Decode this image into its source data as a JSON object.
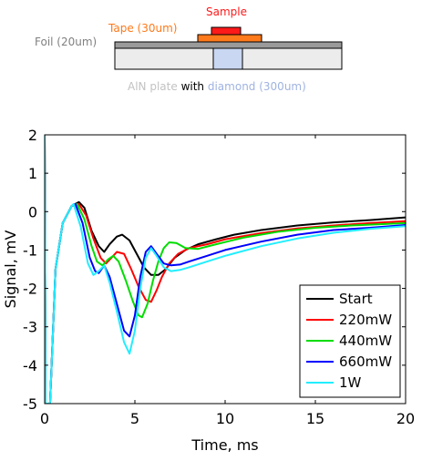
{
  "schematic": {
    "sample_label": "Sample",
    "tape_label": "Tape (30um)",
    "foil_label": "Foil (20um)",
    "aln_label": "AlN plate",
    "with_word": "with",
    "diamond_label": "diamond (300um)",
    "colors": {
      "sample": "#ff1a1a",
      "tape": "#ff7a1a",
      "foil": "#808080",
      "aln": "#c2c2c2",
      "diamond": "#9fb3e0"
    }
  },
  "chart_data": {
    "type": "line",
    "title": "",
    "xlabel": "Time, ms",
    "ylabel": "Signal, mV",
    "xlim": [
      0,
      20
    ],
    "ylim": [
      -5,
      2
    ],
    "xticks": [
      0,
      5,
      10,
      15,
      20
    ],
    "yticks": [
      -5,
      -4,
      -3,
      -2,
      -1,
      0,
      1,
      2
    ],
    "grid": false,
    "legend_position": "lower-right",
    "series": [
      {
        "name": "Start",
        "color": "#000000",
        "points": [
          [
            0,
            2.0
          ],
          [
            0.05,
            -5.0
          ],
          [
            0.3,
            -5.0
          ],
          [
            0.6,
            -1.5
          ],
          [
            1.0,
            -0.3
          ],
          [
            1.5,
            0.15
          ],
          [
            1.9,
            0.25
          ],
          [
            2.2,
            0.1
          ],
          [
            2.6,
            -0.5
          ],
          [
            3.0,
            -0.9
          ],
          [
            3.3,
            -1.05
          ],
          [
            3.6,
            -0.85
          ],
          [
            4.0,
            -0.65
          ],
          [
            4.3,
            -0.6
          ],
          [
            4.7,
            -0.75
          ],
          [
            5.1,
            -1.1
          ],
          [
            5.5,
            -1.45
          ],
          [
            5.9,
            -1.65
          ],
          [
            6.3,
            -1.65
          ],
          [
            6.7,
            -1.5
          ],
          [
            7.2,
            -1.2
          ],
          [
            7.8,
            -1.0
          ],
          [
            8.5,
            -0.85
          ],
          [
            9.5,
            -0.72
          ],
          [
            10.5,
            -0.6
          ],
          [
            12,
            -0.48
          ],
          [
            14,
            -0.36
          ],
          [
            16,
            -0.28
          ],
          [
            18,
            -0.22
          ],
          [
            20,
            -0.15
          ]
        ]
      },
      {
        "name": "220mW",
        "color": "#ff0000",
        "points": [
          [
            0,
            2.0
          ],
          [
            0.05,
            -5.0
          ],
          [
            0.3,
            -5.0
          ],
          [
            0.6,
            -1.5
          ],
          [
            1.0,
            -0.3
          ],
          [
            1.5,
            0.15
          ],
          [
            1.9,
            0.2
          ],
          [
            2.3,
            -0.1
          ],
          [
            2.7,
            -0.7
          ],
          [
            3.1,
            -1.2
          ],
          [
            3.4,
            -1.35
          ],
          [
            3.7,
            -1.2
          ],
          [
            4.0,
            -1.05
          ],
          [
            4.4,
            -1.1
          ],
          [
            4.8,
            -1.5
          ],
          [
            5.2,
            -1.95
          ],
          [
            5.6,
            -2.3
          ],
          [
            5.9,
            -2.35
          ],
          [
            6.2,
            -2.05
          ],
          [
            6.5,
            -1.7
          ],
          [
            6.9,
            -1.35
          ],
          [
            7.4,
            -1.1
          ],
          [
            8.0,
            -0.95
          ],
          [
            9.0,
            -0.85
          ],
          [
            10.0,
            -0.72
          ],
          [
            12,
            -0.56
          ],
          [
            14,
            -0.44
          ],
          [
            16,
            -0.36
          ],
          [
            18,
            -0.3
          ],
          [
            20,
            -0.25
          ]
        ]
      },
      {
        "name": "440mW",
        "color": "#00dd00",
        "points": [
          [
            0,
            2.0
          ],
          [
            0.05,
            -5.0
          ],
          [
            0.3,
            -5.0
          ],
          [
            0.6,
            -1.5
          ],
          [
            1.0,
            -0.3
          ],
          [
            1.5,
            0.15
          ],
          [
            1.8,
            0.2
          ],
          [
            2.2,
            -0.2
          ],
          [
            2.6,
            -0.9
          ],
          [
            2.9,
            -1.3
          ],
          [
            3.2,
            -1.4
          ],
          [
            3.5,
            -1.25
          ],
          [
            3.8,
            -1.15
          ],
          [
            4.1,
            -1.3
          ],
          [
            4.5,
            -1.8
          ],
          [
            4.9,
            -2.35
          ],
          [
            5.2,
            -2.7
          ],
          [
            5.4,
            -2.75
          ],
          [
            5.7,
            -2.4
          ],
          [
            6.0,
            -1.8
          ],
          [
            6.3,
            -1.3
          ],
          [
            6.6,
            -0.95
          ],
          [
            6.9,
            -0.8
          ],
          [
            7.3,
            -0.82
          ],
          [
            7.8,
            -0.95
          ],
          [
            8.5,
            -0.97
          ],
          [
            9.5,
            -0.85
          ],
          [
            11,
            -0.68
          ],
          [
            13,
            -0.52
          ],
          [
            15,
            -0.42
          ],
          [
            17,
            -0.36
          ],
          [
            20,
            -0.3
          ]
        ]
      },
      {
        "name": "660mW",
        "color": "#0000ff",
        "points": [
          [
            0,
            2.0
          ],
          [
            0.05,
            -5.0
          ],
          [
            0.3,
            -5.0
          ],
          [
            0.6,
            -1.5
          ],
          [
            1.0,
            -0.3
          ],
          [
            1.5,
            0.15
          ],
          [
            1.7,
            0.2
          ],
          [
            2.1,
            -0.3
          ],
          [
            2.5,
            -1.2
          ],
          [
            2.8,
            -1.55
          ],
          [
            3.0,
            -1.6
          ],
          [
            3.3,
            -1.4
          ],
          [
            3.6,
            -1.7
          ],
          [
            4.0,
            -2.4
          ],
          [
            4.4,
            -3.1
          ],
          [
            4.7,
            -3.25
          ],
          [
            5.0,
            -2.7
          ],
          [
            5.3,
            -1.7
          ],
          [
            5.6,
            -1.05
          ],
          [
            5.9,
            -0.9
          ],
          [
            6.2,
            -1.1
          ],
          [
            6.6,
            -1.35
          ],
          [
            7.0,
            -1.4
          ],
          [
            7.5,
            -1.38
          ],
          [
            8.0,
            -1.3
          ],
          [
            9.0,
            -1.15
          ],
          [
            10.0,
            -1.0
          ],
          [
            12,
            -0.78
          ],
          [
            14,
            -0.6
          ],
          [
            16,
            -0.48
          ],
          [
            18,
            -0.42
          ],
          [
            20,
            -0.35
          ]
        ]
      },
      {
        "name": "1W",
        "color": "#22eeff",
        "points": [
          [
            0,
            2.0
          ],
          [
            0.05,
            -5.0
          ],
          [
            0.3,
            -5.0
          ],
          [
            0.6,
            -1.5
          ],
          [
            1.0,
            -0.3
          ],
          [
            1.5,
            0.15
          ],
          [
            1.6,
            0.2
          ],
          [
            2.0,
            -0.4
          ],
          [
            2.4,
            -1.35
          ],
          [
            2.7,
            -1.65
          ],
          [
            3.0,
            -1.55
          ],
          [
            3.3,
            -1.4
          ],
          [
            3.6,
            -1.85
          ],
          [
            4.0,
            -2.6
          ],
          [
            4.4,
            -3.4
          ],
          [
            4.7,
            -3.7
          ],
          [
            5.0,
            -3.1
          ],
          [
            5.3,
            -2.0
          ],
          [
            5.6,
            -1.2
          ],
          [
            5.9,
            -0.95
          ],
          [
            6.2,
            -1.15
          ],
          [
            6.6,
            -1.45
          ],
          [
            7.0,
            -1.55
          ],
          [
            7.5,
            -1.52
          ],
          [
            8.0,
            -1.45
          ],
          [
            9.0,
            -1.3
          ],
          [
            10.0,
            -1.15
          ],
          [
            12,
            -0.9
          ],
          [
            14,
            -0.7
          ],
          [
            16,
            -0.55
          ],
          [
            18,
            -0.45
          ],
          [
            20,
            -0.38
          ]
        ]
      }
    ]
  }
}
